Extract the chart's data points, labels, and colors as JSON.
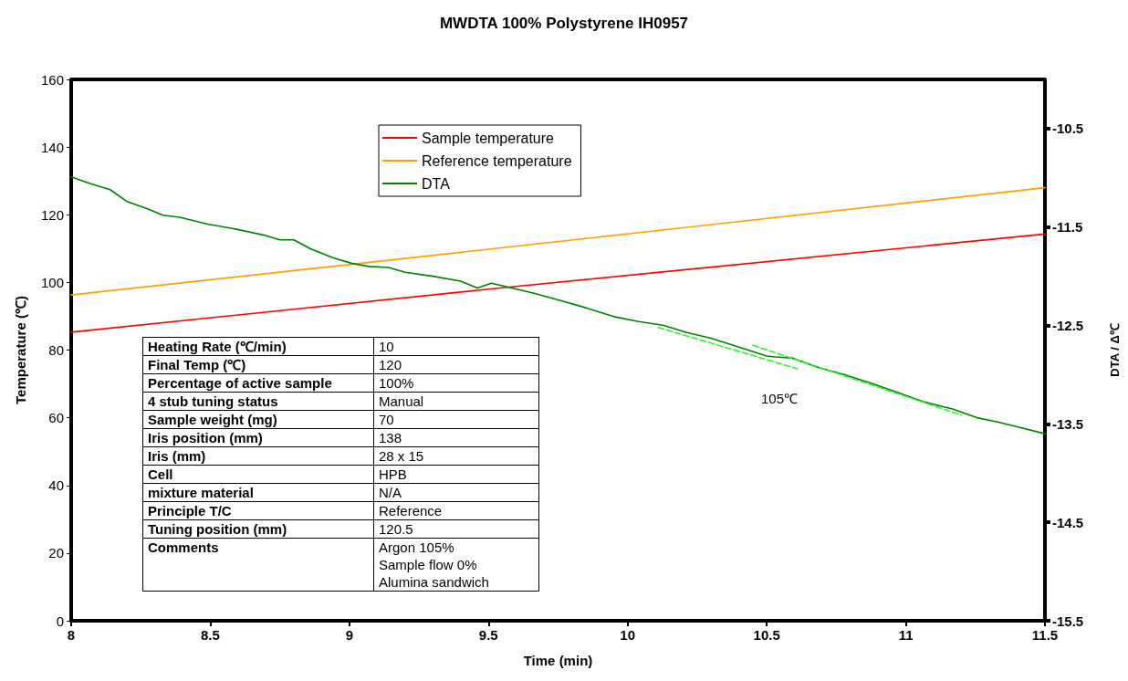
{
  "chart_data": {
    "type": "line",
    "title": "MWDTA 100% Polystyrene IH0957",
    "xlabel": "Time (min)",
    "ylabel": "Temperature (℃)",
    "y2label": "DTA / Δ℃",
    "xlim": [
      8,
      11.5
    ],
    "xticks": [
      8,
      8.5,
      9,
      9.5,
      10,
      10.5,
      11,
      11.5
    ],
    "ylim": [
      0,
      160
    ],
    "yticks": [
      0,
      20,
      40,
      60,
      80,
      100,
      120,
      140,
      160
    ],
    "y2lim": [
      -15.5,
      -10.0
    ],
    "y2ticks": [
      -15.5,
      -14.5,
      -13.5,
      -12.5,
      -11.5,
      -10.5
    ],
    "grid": false,
    "legend": "top",
    "marker": "none",
    "series": [
      {
        "name": "Sample temperature",
        "color": "#ff0000",
        "x": [
          8,
          9.5,
          11.5
        ],
        "values": [
          85.3,
          98.0,
          114.3
        ]
      },
      {
        "name": "Reference temperature",
        "color": "#ffa000",
        "x": [
          8,
          9.5,
          11.5
        ],
        "values": [
          96.3,
          109.8,
          128.0
        ]
      },
      {
        "name": "DTA",
        "color": "#008000",
        "axis": "y2",
        "x": [
          8.0,
          8.07,
          8.14,
          8.2,
          8.27,
          8.33,
          8.39,
          8.49,
          8.59,
          8.69,
          8.75,
          8.8,
          8.86,
          8.94,
          9.01,
          9.07,
          9.14,
          9.2,
          9.3,
          9.4,
          9.46,
          9.51,
          9.57,
          9.66,
          9.75,
          9.85,
          9.95,
          10.04,
          10.13,
          10.21,
          10.3,
          10.4,
          10.5,
          10.53,
          10.59,
          10.69,
          10.78,
          10.88,
          10.98,
          11.07,
          11.17,
          11.26,
          11.33,
          11.4,
          11.5
        ],
        "values": [
          -10.99,
          -11.06,
          -11.12,
          -11.24,
          -11.31,
          -11.38,
          -11.4,
          -11.47,
          -11.52,
          -11.58,
          -11.63,
          -11.63,
          -11.72,
          -11.81,
          -11.87,
          -11.9,
          -11.91,
          -11.96,
          -12.0,
          -12.05,
          -12.12,
          -12.07,
          -12.11,
          -12.17,
          -12.24,
          -12.32,
          -12.41,
          -12.46,
          -12.5,
          -12.57,
          -12.63,
          -12.72,
          -12.81,
          -12.82,
          -12.83,
          -12.93,
          -13.0,
          -13.09,
          -13.19,
          -13.28,
          -13.35,
          -13.44,
          -13.48,
          -13.53,
          -13.6
        ]
      },
      {
        "color": "#33ee33",
        "axis": "y2",
        "line_style": "dashed",
        "x": [
          10.11,
          10.61
        ],
        "values": [
          -12.52,
          -12.94
        ]
      },
      {
        "color": "#33ee33",
        "axis": "y2",
        "line_style": "dashed",
        "x": [
          10.45,
          11.2
        ],
        "values": [
          -12.7,
          -13.41
        ]
      }
    ],
    "annotations": [
      "105℃",
      "Heating Rate (℃/min)",
      "10",
      "Final Temp (℃)",
      "120",
      "Percentage of active sample",
      "100%",
      "4 stub tuning status",
      "Manual",
      "Sample weight (mg)",
      "70",
      "Iris position (mm)",
      "138",
      "Iris (mm)",
      "28 x 15",
      "Cell",
      "HPB",
      "mixture material",
      "N/A",
      "Principle T/C",
      "Reference",
      "Tuning position (mm)",
      "120.5",
      "Comments",
      "Argon 105%\nSample flow 0%\nAlumina sandwich"
    ]
  }
}
